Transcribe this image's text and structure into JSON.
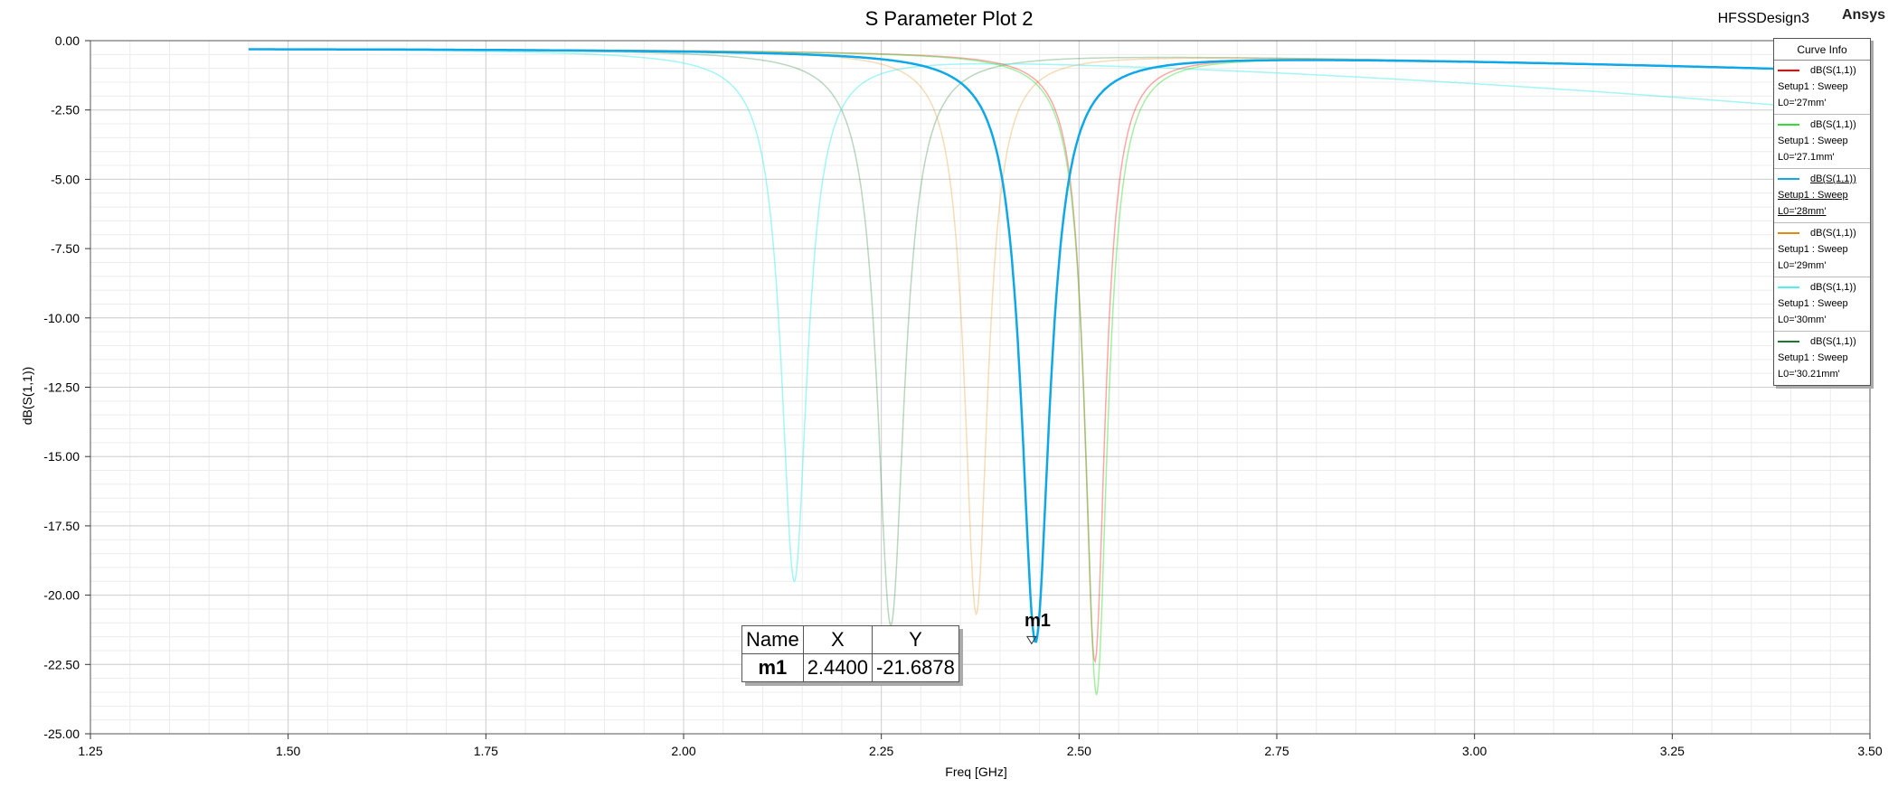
{
  "header": {
    "title": "S Parameter Plot 2",
    "design_name": "HFSSDesign3",
    "brand": "Ansys"
  },
  "legend": {
    "title": "Curve Info",
    "items": [
      {
        "trace": "dB(S(1,1))",
        "setup": "Setup1 : Sweep",
        "param": "L0='27mm'",
        "color": "#ff0000",
        "active": false
      },
      {
        "trace": "dB(S(1,1))",
        "setup": "Setup1 : Sweep",
        "param": "L0='27.1mm'",
        "color": "#33dd33",
        "active": false
      },
      {
        "trace": "dB(S(1,1))",
        "setup": "Setup1 : Sweep",
        "param": "L0='28mm'",
        "color": "#0ea8e8",
        "active": true
      },
      {
        "trace": "dB(S(1,1))",
        "setup": "Setup1 : Sweep",
        "param": "L0='29mm'",
        "color": "#e08a10",
        "active": false
      },
      {
        "trace": "dB(S(1,1))",
        "setup": "Setup1 : Sweep",
        "param": "L0='30mm'",
        "color": "#55eeee",
        "active": false
      },
      {
        "trace": "dB(S(1,1))",
        "setup": "Setup1 : Sweep",
        "param": "L0='30.21mm'",
        "color": "#1a7a2a",
        "active": false
      }
    ]
  },
  "marker": {
    "name": "m1",
    "x": 2.44,
    "y": -21.6878,
    "table": {
      "headers": [
        "Name",
        "X",
        "Y"
      ],
      "row": [
        "m1",
        "2.4400",
        "-21.6878"
      ]
    }
  },
  "chart_data": {
    "type": "line",
    "title": "S Parameter Plot 2",
    "xlabel": "Freq [GHz]",
    "ylabel": "dB(S(1,1))",
    "xlim": [
      1.25,
      3.5
    ],
    "ylim": [
      -25,
      0
    ],
    "xticks": [
      "1.25",
      "1.50",
      "1.75",
      "2.00",
      "2.25",
      "2.50",
      "2.75",
      "3.00",
      "3.25",
      "3.50"
    ],
    "yticks": [
      "0.00",
      "-2.50",
      "-5.00",
      "-7.50",
      "-10.00",
      "-12.50",
      "-15.00",
      "-17.50",
      "-20.00",
      "-22.50",
      "-25.00"
    ],
    "grid": true,
    "legend_position": "top-right",
    "freq_range": [
      1.45,
      3.5
    ],
    "series": [
      {
        "name": "L0='27mm'",
        "color": "#ff0000",
        "opacity": 0.35,
        "width": 1.5,
        "resonance_freq": 2.52,
        "min_db": -22.4,
        "baseline_low": -0.3,
        "baseline_high": -1.1,
        "half_width": 0.016
      },
      {
        "name": "L0='27.1mm'",
        "color": "#33dd33",
        "opacity": 0.45,
        "width": 1.5,
        "resonance_freq": 2.522,
        "min_db": -23.6,
        "baseline_low": -0.3,
        "baseline_high": -1.1,
        "half_width": 0.017
      },
      {
        "name": "L0='28mm'",
        "color": "#0ea8e8",
        "opacity": 1.0,
        "width": 2.5,
        "resonance_freq": 2.445,
        "min_db": -21.7,
        "baseline_low": -0.3,
        "baseline_high": -1.1,
        "half_width": 0.022
      },
      {
        "name": "L0='29mm'",
        "color": "#e08a10",
        "opacity": 0.3,
        "width": 1.5,
        "resonance_freq": 2.37,
        "min_db": -20.7,
        "baseline_low": -0.3,
        "baseline_high": -1.1,
        "half_width": 0.018
      },
      {
        "name": "L0='30mm'",
        "color": "#55eeee",
        "opacity": 0.55,
        "width": 1.5,
        "resonance_freq": 2.14,
        "min_db": -19.5,
        "baseline_low": -0.3,
        "baseline_high": -2.6,
        "half_width": 0.02
      },
      {
        "name": "L0='30.21mm'",
        "color": "#1a7a2a",
        "opacity": 0.3,
        "width": 1.5,
        "resonance_freq": 2.262,
        "min_db": -21.1,
        "baseline_low": -0.3,
        "baseline_high": -1.1,
        "half_width": 0.021
      }
    ]
  }
}
